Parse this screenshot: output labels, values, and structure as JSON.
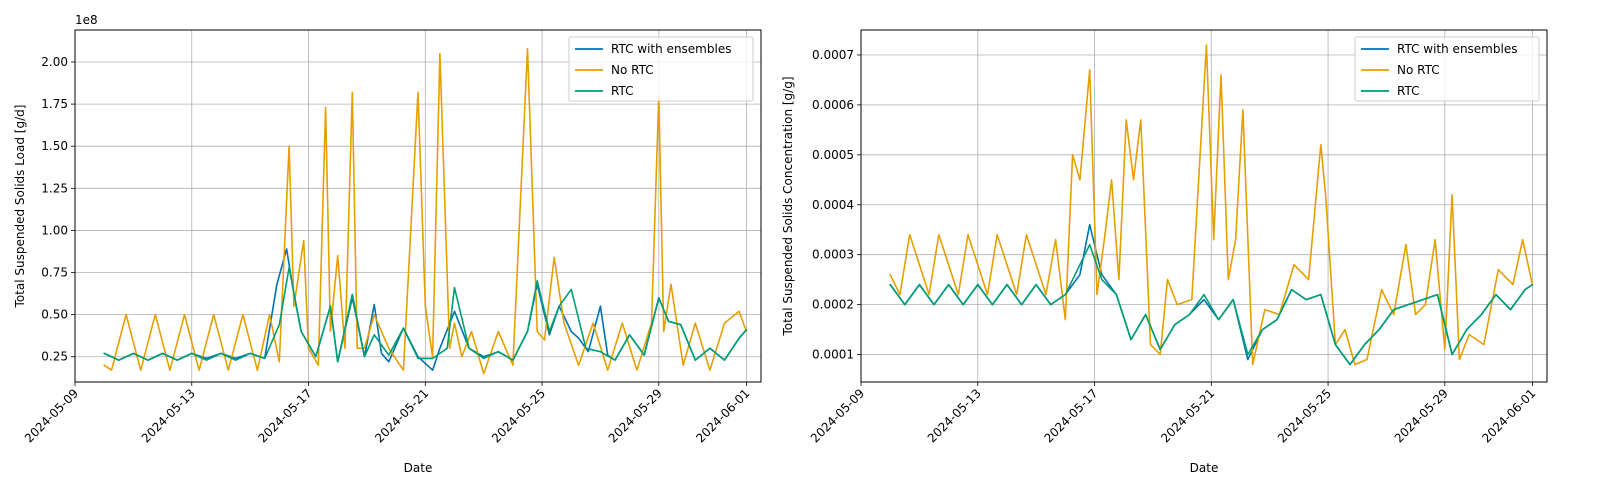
{
  "colors": {
    "rtc_ensembles": "#0072b2",
    "no_rtc": "#e69f00",
    "rtc": "#009e73"
  },
  "chart_data": [
    {
      "type": "line",
      "xlabel": "Date",
      "ylabel": "Total Suspended Solids Load [g/d]",
      "offset_text": "1e8",
      "x_type": "date",
      "xlim": [
        "2024-05-09 00:00",
        "2024-06-01 12:00"
      ],
      "x_ticks": [
        "2024-05-09",
        "2024-05-13",
        "2024-05-17",
        "2024-05-21",
        "2024-05-25",
        "2024-05-29",
        "2024-06-01"
      ],
      "ylim": [
        0.1,
        2.19
      ],
      "y_ticks": [
        "0.25",
        "0.50",
        "0.75",
        "1.00",
        "1.25",
        "1.50",
        "1.75",
        "2.00"
      ],
      "grid": true,
      "legend_position": "top-right",
      "series": [
        {
          "name": "RTC with ensembles",
          "color_key": "rtc_ensembles",
          "x": [
            "2024-05-10 00:00",
            "2024-05-10 12:00",
            "2024-05-11 00:00",
            "2024-05-11 12:00",
            "2024-05-12 00:00",
            "2024-05-12 12:00",
            "2024-05-13 00:00",
            "2024-05-13 12:00",
            "2024-05-14 00:00",
            "2024-05-14 12:00",
            "2024-05-15 00:00",
            "2024-05-15 12:00",
            "2024-05-15 22:00",
            "2024-05-16 06:00",
            "2024-05-16 12:00",
            "2024-05-16 18:00",
            "2024-05-17 06:00",
            "2024-05-17 18:00",
            "2024-05-18 00:00",
            "2024-05-18 12:00",
            "2024-05-18 22:00",
            "2024-05-19 06:00",
            "2024-05-19 12:00",
            "2024-05-19 18:00",
            "2024-05-20 06:00",
            "2024-05-20 18:00",
            "2024-05-21 06:00",
            "2024-05-21 12:00",
            "2024-05-22 00:00",
            "2024-05-22 12:00",
            "2024-05-23 00:00",
            "2024-05-23 12:00",
            "2024-05-24 00:00",
            "2024-05-24 12:00",
            "2024-05-24 20:00",
            "2024-05-25 06:00",
            "2024-05-25 14:00",
            "2024-05-26 00:00",
            "2024-05-26 06:00",
            "2024-05-26 14:00",
            "2024-05-27 00:00",
            "2024-05-27 06:00",
            "2024-05-27 12:00",
            "2024-05-28 00:00",
            "2024-05-28 12:00",
            "2024-05-29 00:00",
            "2024-05-29 08:00",
            "2024-05-29 18:00",
            "2024-05-30 06:00",
            "2024-05-30 18:00",
            "2024-05-31 06:00",
            "2024-05-31 18:00",
            "2024-06-01 00:00"
          ],
          "y": [
            0.27,
            0.23,
            0.27,
            0.23,
            0.27,
            0.23,
            0.27,
            0.24,
            0.27,
            0.24,
            0.27,
            0.24,
            0.68,
            0.89,
            0.62,
            0.4,
            0.25,
            0.55,
            0.22,
            0.6,
            0.25,
            0.56,
            0.27,
            0.22,
            0.42,
            0.25,
            0.17,
            0.3,
            0.52,
            0.3,
            0.25,
            0.28,
            0.23,
            0.4,
            0.68,
            0.38,
            0.55,
            0.4,
            0.36,
            0.28,
            0.55,
            0.26,
            0.23,
            0.38,
            0.26,
            0.6,
            0.46,
            0.44,
            0.23,
            0.3,
            0.23,
            0.36,
            0.41
          ]
        },
        {
          "name": "No RTC",
          "color_key": "no_rtc",
          "x": [
            "2024-05-10 00:00",
            "2024-05-10 06:00",
            "2024-05-10 18:00",
            "2024-05-11 06:00",
            "2024-05-11 18:00",
            "2024-05-12 06:00",
            "2024-05-12 18:00",
            "2024-05-13 06:00",
            "2024-05-13 18:00",
            "2024-05-14 06:00",
            "2024-05-14 18:00",
            "2024-05-15 06:00",
            "2024-05-15 16:00",
            "2024-05-16 00:00",
            "2024-05-16 08:00",
            "2024-05-16 12:00",
            "2024-05-16 20:00",
            "2024-05-17 00:00",
            "2024-05-17 08:00",
            "2024-05-17 14:00",
            "2024-05-17 18:00",
            "2024-05-18 00:00",
            "2024-05-18 06:00",
            "2024-05-18 12:00",
            "2024-05-18 16:00",
            "2024-05-18 22:00",
            "2024-05-19 06:00",
            "2024-05-19 18:00",
            "2024-05-20 06:00",
            "2024-05-20 18:00",
            "2024-05-21 00:00",
            "2024-05-21 06:00",
            "2024-05-21 12:00",
            "2024-05-21 20:00",
            "2024-05-22 00:00",
            "2024-05-22 06:00",
            "2024-05-22 14:00",
            "2024-05-23 00:00",
            "2024-05-23 12:00",
            "2024-05-24 00:00",
            "2024-05-24 12:00",
            "2024-05-24 20:00",
            "2024-05-25 02:00",
            "2024-05-25 10:00",
            "2024-05-25 18:00",
            "2024-05-26 06:00",
            "2024-05-26 18:00",
            "2024-05-27 06:00",
            "2024-05-27 18:00",
            "2024-05-28 06:00",
            "2024-05-28 18:00",
            "2024-05-29 00:00",
            "2024-05-29 04:00",
            "2024-05-29 10:00",
            "2024-05-29 20:00",
            "2024-05-30 06:00",
            "2024-05-30 18:00",
            "2024-05-31 06:00",
            "2024-05-31 18:00",
            "2024-06-01 00:00"
          ],
          "y": [
            0.2,
            0.17,
            0.5,
            0.17,
            0.5,
            0.17,
            0.5,
            0.17,
            0.5,
            0.17,
            0.5,
            0.17,
            0.5,
            0.22,
            1.5,
            0.55,
            0.94,
            0.3,
            0.2,
            1.73,
            0.4,
            0.85,
            0.3,
            1.82,
            0.3,
            0.3,
            0.5,
            0.3,
            0.17,
            1.82,
            0.55,
            0.25,
            2.05,
            0.3,
            0.45,
            0.25,
            0.4,
            0.15,
            0.4,
            0.2,
            2.08,
            0.4,
            0.35,
            0.84,
            0.45,
            0.2,
            0.45,
            0.17,
            0.45,
            0.17,
            0.45,
            1.8,
            0.4,
            0.68,
            0.2,
            0.45,
            0.17,
            0.45,
            0.52,
            0.4
          ]
        },
        {
          "name": "RTC",
          "color_key": "rtc",
          "x": [
            "2024-05-10 00:00",
            "2024-05-10 12:00",
            "2024-05-11 00:00",
            "2024-05-11 12:00",
            "2024-05-12 00:00",
            "2024-05-12 12:00",
            "2024-05-13 00:00",
            "2024-05-13 12:00",
            "2024-05-14 00:00",
            "2024-05-14 12:00",
            "2024-05-15 00:00",
            "2024-05-15 12:00",
            "2024-05-16 00:00",
            "2024-05-16 08:00",
            "2024-05-16 18:00",
            "2024-05-17 06:00",
            "2024-05-17 18:00",
            "2024-05-18 00:00",
            "2024-05-18 12:00",
            "2024-05-18 22:00",
            "2024-05-19 06:00",
            "2024-05-19 18:00",
            "2024-05-20 06:00",
            "2024-05-20 18:00",
            "2024-05-21 06:00",
            "2024-05-21 18:00",
            "2024-05-22 00:00",
            "2024-05-22 12:00",
            "2024-05-23 00:00",
            "2024-05-23 12:00",
            "2024-05-24 00:00",
            "2024-05-24 12:00",
            "2024-05-24 20:00",
            "2024-05-25 06:00",
            "2024-05-25 14:00",
            "2024-05-26 00:00",
            "2024-05-26 12:00",
            "2024-05-27 00:00",
            "2024-05-27 12:00",
            "2024-05-28 00:00",
            "2024-05-28 12:00",
            "2024-05-29 00:00",
            "2024-05-29 08:00",
            "2024-05-29 18:00",
            "2024-05-30 06:00",
            "2024-05-30 18:00",
            "2024-05-31 06:00",
            "2024-05-31 18:00",
            "2024-06-01 00:00"
          ],
          "y": [
            0.27,
            0.23,
            0.27,
            0.23,
            0.27,
            0.23,
            0.27,
            0.23,
            0.27,
            0.23,
            0.27,
            0.24,
            0.44,
            0.78,
            0.4,
            0.25,
            0.55,
            0.22,
            0.62,
            0.25,
            0.38,
            0.26,
            0.42,
            0.24,
            0.24,
            0.3,
            0.66,
            0.3,
            0.24,
            0.28,
            0.23,
            0.4,
            0.7,
            0.4,
            0.55,
            0.65,
            0.3,
            0.28,
            0.23,
            0.38,
            0.26,
            0.6,
            0.46,
            0.44,
            0.23,
            0.3,
            0.23,
            0.36,
            0.41
          ]
        }
      ]
    },
    {
      "type": "line",
      "xlabel": "Date",
      "ylabel": "Total Suspended Solids Concentration [g/g]",
      "x_type": "date",
      "xlim": [
        "2024-05-09 00:00",
        "2024-06-01 12:00"
      ],
      "x_ticks": [
        "2024-05-09",
        "2024-05-13",
        "2024-05-17",
        "2024-05-21",
        "2024-05-25",
        "2024-05-29",
        "2024-06-01"
      ],
      "ylim": [
        4.5e-05,
        0.00075
      ],
      "y_ticks": [
        "0.0001",
        "0.0002",
        "0.0003",
        "0.0004",
        "0.0005",
        "0.0006",
        "0.0007"
      ],
      "grid": true,
      "legend_position": "top-right",
      "series": [
        {
          "name": "RTC with ensembles",
          "color_key": "rtc_ensembles",
          "x": [
            "2024-05-10 00:00",
            "2024-05-10 12:00",
            "2024-05-11 00:00",
            "2024-05-11 12:00",
            "2024-05-12 00:00",
            "2024-05-12 12:00",
            "2024-05-13 00:00",
            "2024-05-13 12:00",
            "2024-05-14 00:00",
            "2024-05-14 12:00",
            "2024-05-15 00:00",
            "2024-05-15 12:00",
            "2024-05-16 00:00",
            "2024-05-16 12:00",
            "2024-05-16 20:00",
            "2024-05-17 06:00",
            "2024-05-17 18:00",
            "2024-05-18 06:00",
            "2024-05-18 18:00",
            "2024-05-19 06:00",
            "2024-05-19 18:00",
            "2024-05-20 06:00",
            "2024-05-20 18:00",
            "2024-05-21 06:00",
            "2024-05-21 18:00",
            "2024-05-22 06:00",
            "2024-05-22 18:00",
            "2024-05-23 06:00",
            "2024-05-23 18:00",
            "2024-05-24 06:00",
            "2024-05-24 18:00",
            "2024-05-25 06:00",
            "2024-05-25 18:00",
            "2024-05-26 06:00",
            "2024-05-26 18:00",
            "2024-05-27 06:00",
            "2024-05-27 18:00",
            "2024-05-28 06:00",
            "2024-05-28 18:00",
            "2024-05-29 06:00",
            "2024-05-29 18:00",
            "2024-05-30 06:00",
            "2024-05-30 18:00",
            "2024-05-31 06:00",
            "2024-05-31 18:00",
            "2024-06-01 00:00"
          ],
          "y": [
            0.00024,
            0.0002,
            0.00024,
            0.0002,
            0.00024,
            0.0002,
            0.00024,
            0.0002,
            0.00024,
            0.0002,
            0.00024,
            0.0002,
            0.00022,
            0.00026,
            0.00036,
            0.00026,
            0.00022,
            0.00013,
            0.00018,
            0.00011,
            0.00016,
            0.00018,
            0.00021,
            0.00017,
            0.00021,
            9e-05,
            0.00015,
            0.00017,
            0.00023,
            0.00021,
            0.00022,
            0.00012,
            8e-05,
            0.00012,
            0.00015,
            0.00019,
            0.0002,
            0.00021,
            0.00022,
            0.0001,
            0.00015,
            0.00018,
            0.00022,
            0.00019,
            0.00023,
            0.00024
          ]
        },
        {
          "name": "No RTC",
          "color_key": "no_rtc",
          "x": [
            "2024-05-10 00:00",
            "2024-05-10 08:00",
            "2024-05-10 16:00",
            "2024-05-11 08:00",
            "2024-05-11 16:00",
            "2024-05-12 08:00",
            "2024-05-12 16:00",
            "2024-05-13 08:00",
            "2024-05-13 16:00",
            "2024-05-14 08:00",
            "2024-05-14 16:00",
            "2024-05-15 08:00",
            "2024-05-15 16:00",
            "2024-05-16 00:00",
            "2024-05-16 06:00",
            "2024-05-16 12:00",
            "2024-05-16 20:00",
            "2024-05-17 02:00",
            "2024-05-17 08:00",
            "2024-05-17 14:00",
            "2024-05-17 20:00",
            "2024-05-18 02:00",
            "2024-05-18 08:00",
            "2024-05-18 14:00",
            "2024-05-18 22:00",
            "2024-05-19 06:00",
            "2024-05-19 12:00",
            "2024-05-19 20:00",
            "2024-05-20 08:00",
            "2024-05-20 20:00",
            "2024-05-21 02:00",
            "2024-05-21 08:00",
            "2024-05-21 14:00",
            "2024-05-21 20:00",
            "2024-05-22 02:00",
            "2024-05-22 10:00",
            "2024-05-22 20:00",
            "2024-05-23 08:00",
            "2024-05-23 20:00",
            "2024-05-24 08:00",
            "2024-05-24 18:00",
            "2024-05-24 22:00",
            "2024-05-25 06:00",
            "2024-05-25 14:00",
            "2024-05-25 22:00",
            "2024-05-26 08:00",
            "2024-05-26 20:00",
            "2024-05-27 06:00",
            "2024-05-27 16:00",
            "2024-05-28 00:00",
            "2024-05-28 08:00",
            "2024-05-28 16:00",
            "2024-05-29 00:00",
            "2024-05-29 06:00",
            "2024-05-29 12:00",
            "2024-05-29 20:00",
            "2024-05-30 08:00",
            "2024-05-30 20:00",
            "2024-05-31 08:00",
            "2024-05-31 16:00",
            "2024-06-01 00:00"
          ],
          "y": [
            0.00026,
            0.00022,
            0.00034,
            0.00022,
            0.00034,
            0.00022,
            0.00034,
            0.00022,
            0.00034,
            0.00022,
            0.00034,
            0.00022,
            0.00033,
            0.00017,
            0.0005,
            0.00045,
            0.00067,
            0.00022,
            0.00033,
            0.00045,
            0.00025,
            0.00057,
            0.00045,
            0.00057,
            0.00012,
            0.0001,
            0.00025,
            0.0002,
            0.00021,
            0.00072,
            0.00033,
            0.00066,
            0.00025,
            0.00033,
            0.00059,
            8e-05,
            0.00019,
            0.00018,
            0.00028,
            0.00025,
            0.00052,
            0.00042,
            0.00012,
            0.00015,
            8e-05,
            9e-05,
            0.00023,
            0.00018,
            0.00032,
            0.00018,
            0.0002,
            0.00033,
            0.00011,
            0.00042,
            9e-05,
            0.00014,
            0.00012,
            0.00027,
            0.00024,
            0.00033,
            0.00024
          ]
        },
        {
          "name": "RTC",
          "color_key": "rtc",
          "x": [
            "2024-05-10 00:00",
            "2024-05-10 12:00",
            "2024-05-11 00:00",
            "2024-05-11 12:00",
            "2024-05-12 00:00",
            "2024-05-12 12:00",
            "2024-05-13 00:00",
            "2024-05-13 12:00",
            "2024-05-14 00:00",
            "2024-05-14 12:00",
            "2024-05-15 00:00",
            "2024-05-15 12:00",
            "2024-05-16 00:00",
            "2024-05-16 12:00",
            "2024-05-16 20:00",
            "2024-05-17 06:00",
            "2024-05-17 18:00",
            "2024-05-18 06:00",
            "2024-05-18 18:00",
            "2024-05-19 06:00",
            "2024-05-19 18:00",
            "2024-05-20 06:00",
            "2024-05-20 18:00",
            "2024-05-21 06:00",
            "2024-05-21 18:00",
            "2024-05-22 06:00",
            "2024-05-22 18:00",
            "2024-05-23 06:00",
            "2024-05-23 18:00",
            "2024-05-24 06:00",
            "2024-05-24 18:00",
            "2024-05-25 06:00",
            "2024-05-25 18:00",
            "2024-05-26 06:00",
            "2024-05-26 18:00",
            "2024-05-27 06:00",
            "2024-05-27 18:00",
            "2024-05-28 06:00",
            "2024-05-28 18:00",
            "2024-05-29 06:00",
            "2024-05-29 18:00",
            "2024-05-30 06:00",
            "2024-05-30 18:00",
            "2024-05-31 06:00",
            "2024-05-31 18:00",
            "2024-06-01 00:00"
          ],
          "y": [
            0.00024,
            0.0002,
            0.00024,
            0.0002,
            0.00024,
            0.0002,
            0.00024,
            0.0002,
            0.00024,
            0.0002,
            0.00024,
            0.0002,
            0.00022,
            0.00028,
            0.00032,
            0.00025,
            0.00022,
            0.00013,
            0.00018,
            0.00011,
            0.00016,
            0.00018,
            0.00022,
            0.00017,
            0.00021,
            0.0001,
            0.00015,
            0.00017,
            0.00023,
            0.00021,
            0.00022,
            0.00012,
            8e-05,
            0.00012,
            0.00015,
            0.00019,
            0.0002,
            0.00021,
            0.00022,
            0.0001,
            0.00015,
            0.00018,
            0.00022,
            0.00019,
            0.00023,
            0.00024
          ]
        }
      ]
    }
  ]
}
